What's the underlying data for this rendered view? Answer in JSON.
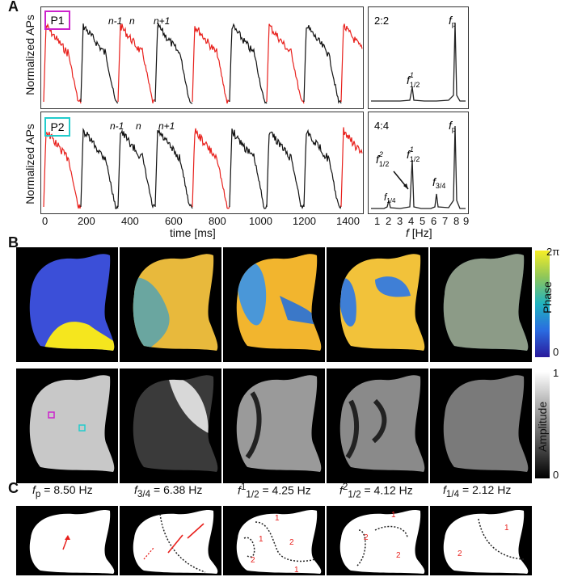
{
  "panels": {
    "a": "A",
    "b": "B",
    "c": "C"
  },
  "panel_a": {
    "row1": {
      "badge": "P1",
      "badge_color": "#cc22cc",
      "beat_labels": [
        "n-1",
        "n",
        "n+1"
      ],
      "ratio": "2:2",
      "peak_fp": "f",
      "peak_fp_sub": "p",
      "peak_half": "f",
      "peak_half_sub": "1/2",
      "peak_half_sup": "1"
    },
    "row2": {
      "badge": "P2",
      "badge_color": "#22cccc",
      "beat_labels": [
        "n-1",
        "n",
        "n+1"
      ],
      "ratio": "4:4",
      "peak_fp": "f",
      "peak_fp_sub": "p",
      "peak_half1": "f",
      "peak_half1_sub": "1/2",
      "peak_half1_sup": "1",
      "peak_half2": "f",
      "peak_half2_sub": "1/2",
      "peak_half2_sup": "2",
      "peak_34": "f",
      "peak_34_sub": "3/4",
      "peak_14": "f",
      "peak_14_sub": "1/4"
    },
    "y_label": "Normalized APs",
    "x_label_time": "time [ms]",
    "x_label_freq_f": "f",
    "x_label_freq_unit": " [Hz]",
    "time_ticks": [
      "0",
      "200",
      "400",
      "600",
      "800",
      "1000",
      "1200",
      "1400"
    ],
    "freq_ticks": [
      "1",
      "2",
      "3",
      "4",
      "5",
      "6",
      "7",
      "8",
      "9"
    ]
  },
  "panel_b": {
    "colorbar_phase_label": "Phase",
    "colorbar_phase_top": "2π",
    "colorbar_phase_bottom": "0",
    "colorbar_amp_label": "Amplitude",
    "colorbar_amp_top": "1",
    "colorbar_amp_bottom": "0"
  },
  "panel_c_headers": [
    {
      "base": "f",
      "sub": "p",
      "sup": "",
      "value": " = 8.50 Hz"
    },
    {
      "base": "f",
      "sub": "3/4",
      "sup": "",
      "value": " = 6.38 Hz"
    },
    {
      "base": "f",
      "sub": "1/2",
      "sup": "1",
      "value": " = 4.25 Hz"
    },
    {
      "base": "f",
      "sub": "1/2",
      "sup": "2",
      "value": " = 4.12 Hz"
    },
    {
      "base": "f",
      "sub": "1/4",
      "sup": "",
      "value": " = 2.12 Hz"
    }
  ],
  "panel_c_labels": {
    "m3": [
      "1",
      "1",
      "2",
      "2",
      "1"
    ],
    "m4": [
      "1",
      "2",
      "2"
    ],
    "m5": [
      "1",
      "2"
    ]
  },
  "colors": {
    "trace_red": "#e8201c",
    "trace_black": "#111111",
    "arrow_red": "#e8201c"
  }
}
